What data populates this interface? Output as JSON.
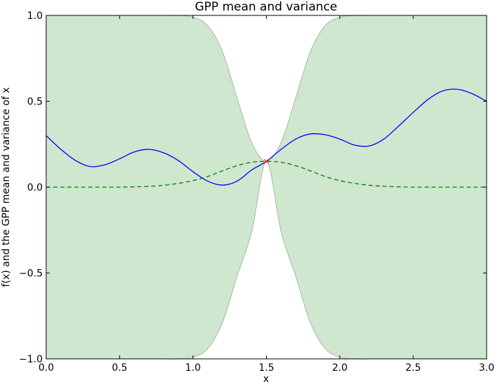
{
  "chart_data": {
    "type": "line",
    "title": "GPP mean and variance",
    "xlabel": "x",
    "ylabel": "f(x) and the GPP mean and variance of x",
    "xlim": [
      0.0,
      3.0
    ],
    "ylim": [
      -1.0,
      1.0
    ],
    "x_ticks": [
      "0.0",
      "0.5",
      "1.0",
      "1.5",
      "2.0",
      "2.5",
      "3.0"
    ],
    "y_ticks": [
      "−1.0",
      "−0.5",
      "0.0",
      "0.5",
      "1.0"
    ],
    "grid": false,
    "legend": "none",
    "x": [
      0.0,
      0.1,
      0.2,
      0.3,
      0.4,
      0.5,
      0.6,
      0.7,
      0.8,
      0.9,
      1.0,
      1.1,
      1.2,
      1.3,
      1.4,
      1.5,
      1.6,
      1.7,
      1.8,
      1.9,
      2.0,
      2.1,
      2.2,
      2.3,
      2.4,
      2.5,
      2.6,
      2.7,
      2.8,
      2.9,
      3.0
    ],
    "series": [
      {
        "role": "f",
        "color": "#0000ff",
        "style": "solid",
        "values": [
          0.3,
          0.22,
          0.155,
          0.12,
          0.13,
          0.165,
          0.205,
          0.22,
          0.2,
          0.155,
          0.09,
          0.035,
          0.012,
          0.035,
          0.1,
          0.15,
          0.22,
          0.28,
          0.31,
          0.305,
          0.28,
          0.245,
          0.24,
          0.28,
          0.355,
          0.435,
          0.51,
          0.56,
          0.57,
          0.545,
          0.5
        ]
      },
      {
        "role": "gpp-mean",
        "color": "#008000",
        "style": "dashed",
        "values": [
          0.0,
          0.0,
          0.0,
          0.0,
          0.0,
          0.0,
          0.002,
          0.005,
          0.011,
          0.022,
          0.038,
          0.062,
          0.095,
          0.125,
          0.145,
          0.15,
          0.145,
          0.125,
          0.095,
          0.062,
          0.038,
          0.022,
          0.011,
          0.005,
          0.002,
          0.0,
          0.0,
          0.0,
          0.0,
          0.0,
          0.0
        ]
      }
    ],
    "variance_band": {
      "color": "#cfe6cf",
      "edge_color": "#a8b8a8",
      "upper": [
        1.0,
        1.0,
        1.0,
        1.0,
        1.0,
        1.0,
        1.0,
        1.0,
        1.0,
        1.0,
        0.99,
        0.94,
        0.79,
        0.52,
        0.26,
        0.15,
        0.26,
        0.52,
        0.79,
        0.94,
        0.99,
        1.0,
        1.0,
        1.0,
        1.0,
        1.0,
        1.0,
        1.0,
        1.0,
        1.0,
        1.0
      ],
      "lower": [
        -1.0,
        -1.0,
        -1.0,
        -1.0,
        -1.0,
        -1.0,
        -1.0,
        -1.0,
        -1.0,
        -1.0,
        -0.99,
        -0.94,
        -0.79,
        -0.52,
        -0.26,
        0.15,
        -0.26,
        -0.52,
        -0.79,
        -0.94,
        -0.99,
        -1.0,
        -1.0,
        -1.0,
        -1.0,
        -1.0,
        -1.0,
        -1.0,
        -1.0,
        -1.0,
        -1.0
      ]
    },
    "observations": [
      {
        "x": 1.5,
        "y": 0.15,
        "marker": "x",
        "color": "#ff0000"
      }
    ]
  }
}
